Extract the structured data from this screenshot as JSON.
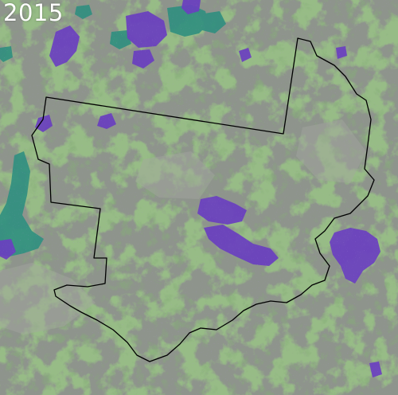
{
  "year_label": "2015",
  "colors": {
    "terrain_gray": "#8e948c",
    "vegetation_green": "#4f7f3c",
    "dark_green": "#3e6a2f",
    "burn_purple": "#6a3fc0",
    "water_teal": "#2f8f7f",
    "boundary": "#000000"
  }
}
